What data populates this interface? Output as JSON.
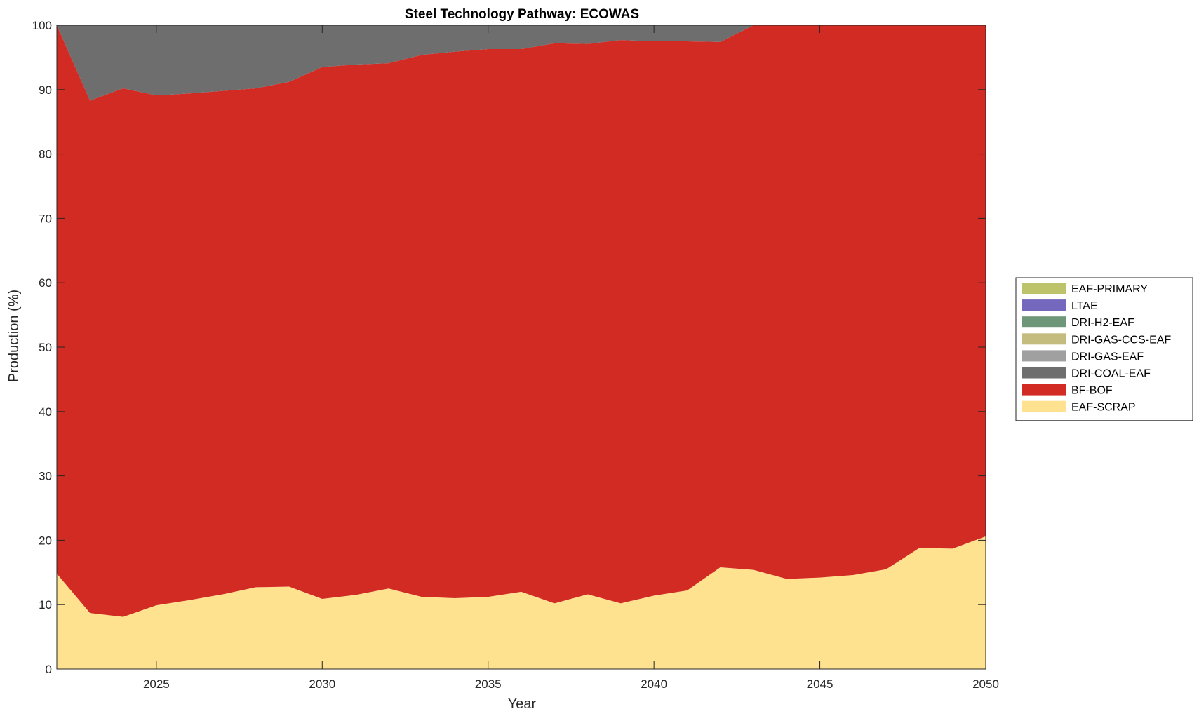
{
  "chart_data": {
    "type": "area",
    "stacked": true,
    "title": "Steel Technology Pathway: ECOWAS",
    "xlabel": "Year",
    "ylabel": "Production (%)",
    "xlim": [
      2022,
      2050
    ],
    "ylim": [
      0,
      100
    ],
    "x_ticks": [
      2025,
      2030,
      2035,
      2040,
      2045,
      2050
    ],
    "y_ticks": [
      0,
      10,
      20,
      30,
      40,
      50,
      60,
      70,
      80,
      90,
      100
    ],
    "grid": false,
    "legend_position": "right-outside",
    "x": [
      2022,
      2023,
      2024,
      2025,
      2026,
      2027,
      2028,
      2029,
      2030,
      2031,
      2032,
      2033,
      2034,
      2035,
      2036,
      2037,
      2038,
      2039,
      2040,
      2041,
      2042,
      2043,
      2044,
      2045,
      2046,
      2047,
      2048,
      2049,
      2050
    ],
    "series": [
      {
        "name": "EAF-SCRAP",
        "color": "#FEE290",
        "values": [
          14.8,
          8.7,
          8.1,
          9.9,
          10.7,
          11.6,
          12.7,
          12.8,
          10.9,
          11.5,
          12.5,
          11.2,
          11.0,
          11.2,
          12.0,
          10.2,
          11.6,
          10.2,
          11.4,
          12.2,
          15.8,
          15.4,
          14.0,
          14.2,
          14.6,
          15.5,
          18.8,
          18.7,
          20.6
        ]
      },
      {
        "name": "BF-BOF",
        "color": "#D22B24",
        "values": [
          85.2,
          79.6,
          82.1,
          79.2,
          78.7,
          78.2,
          77.5,
          78.4,
          82.6,
          82.4,
          81.6,
          84.2,
          84.9,
          85.1,
          84.3,
          87.0,
          85.5,
          87.5,
          86.1,
          85.3,
          81.6,
          84.6,
          86.0,
          85.8,
          85.4,
          84.5,
          81.2,
          81.3,
          79.4
        ]
      },
      {
        "name": "DRI-COAL-EAF",
        "color": "#6E6E6E",
        "values": [
          0,
          11.7,
          9.8,
          10.9,
          10.6,
          10.2,
          9.8,
          8.8,
          6.5,
          6.1,
          5.9,
          4.6,
          4.1,
          3.7,
          3.7,
          2.8,
          2.9,
          2.3,
          2.5,
          2.5,
          2.6,
          0,
          0,
          0,
          0,
          0,
          0,
          0,
          0
        ]
      },
      {
        "name": "DRI-GAS-EAF",
        "color": "#A0A0A0",
        "values": [
          0,
          0,
          0,
          0,
          0,
          0,
          0,
          0,
          0,
          0,
          0,
          0,
          0,
          0,
          0,
          0,
          0,
          0,
          0,
          0,
          0,
          0,
          0,
          0,
          0,
          0,
          0,
          0,
          0
        ]
      },
      {
        "name": "DRI-GAS-CCS-EAF",
        "color": "#C4BC7E",
        "values": [
          0,
          0,
          0,
          0,
          0,
          0,
          0,
          0,
          0,
          0,
          0,
          0,
          0,
          0,
          0,
          0,
          0,
          0,
          0,
          0,
          0,
          0,
          0,
          0,
          0,
          0,
          0,
          0,
          0
        ]
      },
      {
        "name": "DRI-H2-EAF",
        "color": "#6E9678",
        "values": [
          0,
          0,
          0,
          0,
          0,
          0,
          0,
          0,
          0,
          0,
          0,
          0,
          0,
          0,
          0,
          0,
          0,
          0,
          0,
          0,
          0,
          0,
          0,
          0,
          0,
          0,
          0,
          0,
          0
        ]
      },
      {
        "name": "LTAE",
        "color": "#7468BE",
        "values": [
          0,
          0,
          0,
          0,
          0,
          0,
          0,
          0,
          0,
          0,
          0,
          0,
          0,
          0,
          0,
          0,
          0,
          0,
          0,
          0,
          0,
          0,
          0,
          0,
          0,
          0,
          0,
          0,
          0
        ]
      },
      {
        "name": "EAF-PRIMARY",
        "color": "#BDC36A",
        "values": [
          0,
          0,
          0,
          0,
          0,
          0,
          0,
          0,
          0,
          0,
          0,
          0,
          0,
          0,
          0,
          0,
          0,
          0,
          0,
          0,
          0,
          0,
          0,
          0,
          0,
          0,
          0,
          0,
          0
        ]
      }
    ],
    "legend_order": [
      "EAF-PRIMARY",
      "LTAE",
      "DRI-H2-EAF",
      "DRI-GAS-CCS-EAF",
      "DRI-GAS-EAF",
      "DRI-COAL-EAF",
      "BF-BOF",
      "EAF-SCRAP"
    ]
  }
}
